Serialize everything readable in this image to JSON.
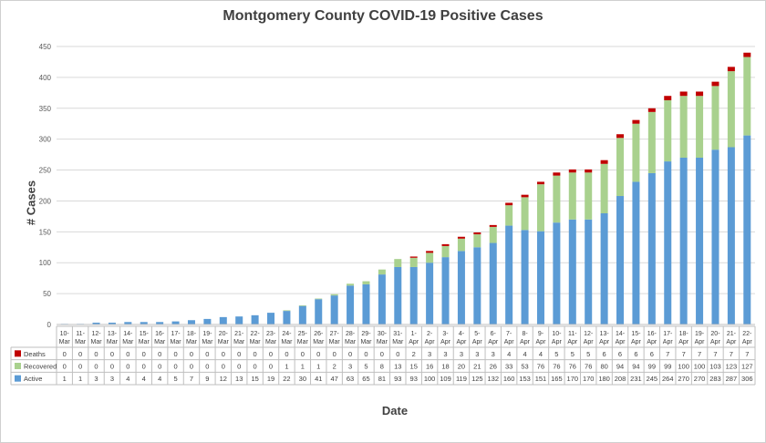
{
  "chart_data": {
    "type": "bar",
    "stacked": true,
    "title": "Montgomery County COVID-19 Positive Cases",
    "xlabel": "Date",
    "ylabel": "# Cases",
    "ylim": [
      0,
      450
    ],
    "yticks": [
      0,
      50,
      100,
      150,
      200,
      250,
      300,
      350,
      400,
      450
    ],
    "grid": true,
    "legend": "data-table",
    "categories": [
      "10-Mar",
      "11-Mar",
      "12-Mar",
      "13-Mar",
      "14-Mar",
      "15-Mar",
      "16-Mar",
      "17-Mar",
      "18-Mar",
      "19-Mar",
      "20-Mar",
      "21-Mar",
      "22-Mar",
      "23-Mar",
      "24-Mar",
      "25-Mar",
      "26-Mar",
      "27-Mar",
      "28-Mar",
      "29-Mar",
      "30-Mar",
      "31-Mar",
      "1-Apr",
      "2-Apr",
      "3-Apr",
      "4-Apr",
      "5-Apr",
      "6-Apr",
      "7-Apr",
      "8-Apr",
      "9-Apr",
      "10-Apr",
      "11-Apr",
      "12-Apr",
      "13-Apr",
      "14-Apr",
      "15-Apr",
      "16-Apr",
      "17-Apr",
      "18-Apr",
      "19-Apr",
      "20-Apr",
      "21-Apr",
      "22-Apr"
    ],
    "series": [
      {
        "name": "Active",
        "color": "#5b9bd5",
        "values": [
          1,
          1,
          3,
          3,
          4,
          4,
          4,
          5,
          7,
          9,
          12,
          13,
          15,
          19,
          22,
          30,
          41,
          47,
          63,
          65,
          81,
          93,
          93,
          100,
          109,
          119,
          125,
          132,
          160,
          153,
          151,
          165,
          170,
          170,
          180,
          208,
          231,
          245,
          264,
          270,
          270,
          283,
          287,
          306
        ]
      },
      {
        "name": "Recovered",
        "color": "#a9d18e",
        "values": [
          0,
          0,
          0,
          0,
          0,
          0,
          0,
          0,
          0,
          0,
          0,
          0,
          0,
          0,
          1,
          1,
          1,
          2,
          3,
          5,
          8,
          13,
          15,
          16,
          18,
          20,
          21,
          26,
          33,
          53,
          76,
          76,
          76,
          76,
          80,
          94,
          94,
          99,
          99,
          100,
          100,
          103,
          123,
          127
        ]
      },
      {
        "name": "Deaths",
        "color": "#c00000",
        "values": [
          0,
          0,
          0,
          0,
          0,
          0,
          0,
          0,
          0,
          0,
          0,
          0,
          0,
          0,
          0,
          0,
          0,
          0,
          0,
          0,
          0,
          0,
          2,
          3,
          3,
          3,
          3,
          3,
          4,
          4,
          4,
          5,
          5,
          5,
          6,
          6,
          6,
          6,
          7,
          7,
          7,
          7,
          7,
          7
        ]
      }
    ]
  }
}
